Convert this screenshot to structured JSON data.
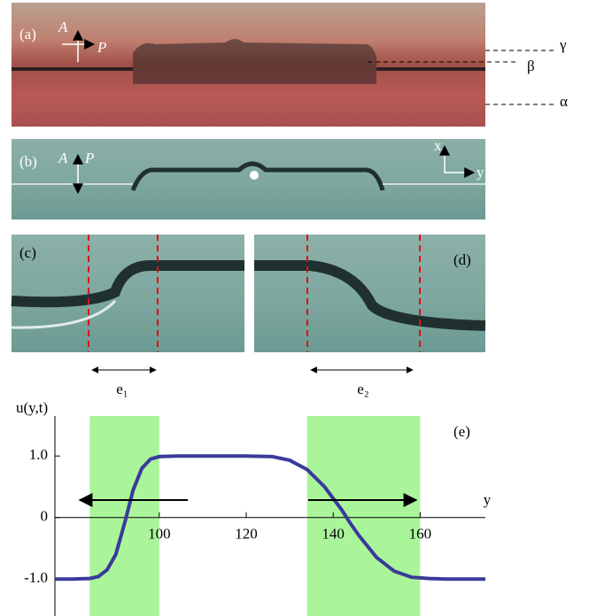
{
  "panels": {
    "a": {
      "label": "(a)",
      "analyzer": "A",
      "polarizer": "P",
      "gamma": "γ",
      "beta": "β",
      "alpha": "α"
    },
    "b": {
      "label": "(b)",
      "analyzer": "A",
      "polarizer": "P",
      "axis_x": "x",
      "axis_y": "y"
    },
    "c": {
      "label": "(c)"
    },
    "d": {
      "label": "(d)"
    },
    "e1": "e₁",
    "e2": "e₂"
  },
  "chart_data": {
    "type": "line",
    "annotation": "(e)",
    "ylabel": "u(y,t)",
    "xlabel": "y",
    "x": [
      76,
      80,
      84,
      86,
      88,
      90,
      92,
      94,
      96,
      98,
      100,
      104,
      110,
      120,
      126,
      130,
      134,
      138,
      142,
      144,
      146,
      150,
      154,
      158,
      162,
      166,
      170,
      175
    ],
    "series": [
      {
        "color": "#3a3a9a",
        "values": [
          -1,
          -1,
          -0.99,
          -0.96,
          -0.85,
          -0.6,
          -0.1,
          0.45,
          0.8,
          0.95,
          0.99,
          1,
          1,
          1,
          0.99,
          0.93,
          0.78,
          0.5,
          0.12,
          -0.1,
          -0.3,
          -0.65,
          -0.87,
          -0.97,
          -0.99,
          -1,
          -1,
          -1
        ]
      }
    ],
    "xlim": [
      76,
      175
    ],
    "ylim": [
      -1.6,
      1.65
    ],
    "xticks": [
      100,
      120,
      140,
      160
    ],
    "yticks": [
      {
        "value": -1,
        "label": "-1.0"
      },
      0,
      {
        "value": 1,
        "label": "1.0"
      }
    ],
    "shaded_regions": [
      [
        84,
        100
      ],
      [
        134,
        160
      ]
    ],
    "shade_color": "#aaf59a"
  }
}
